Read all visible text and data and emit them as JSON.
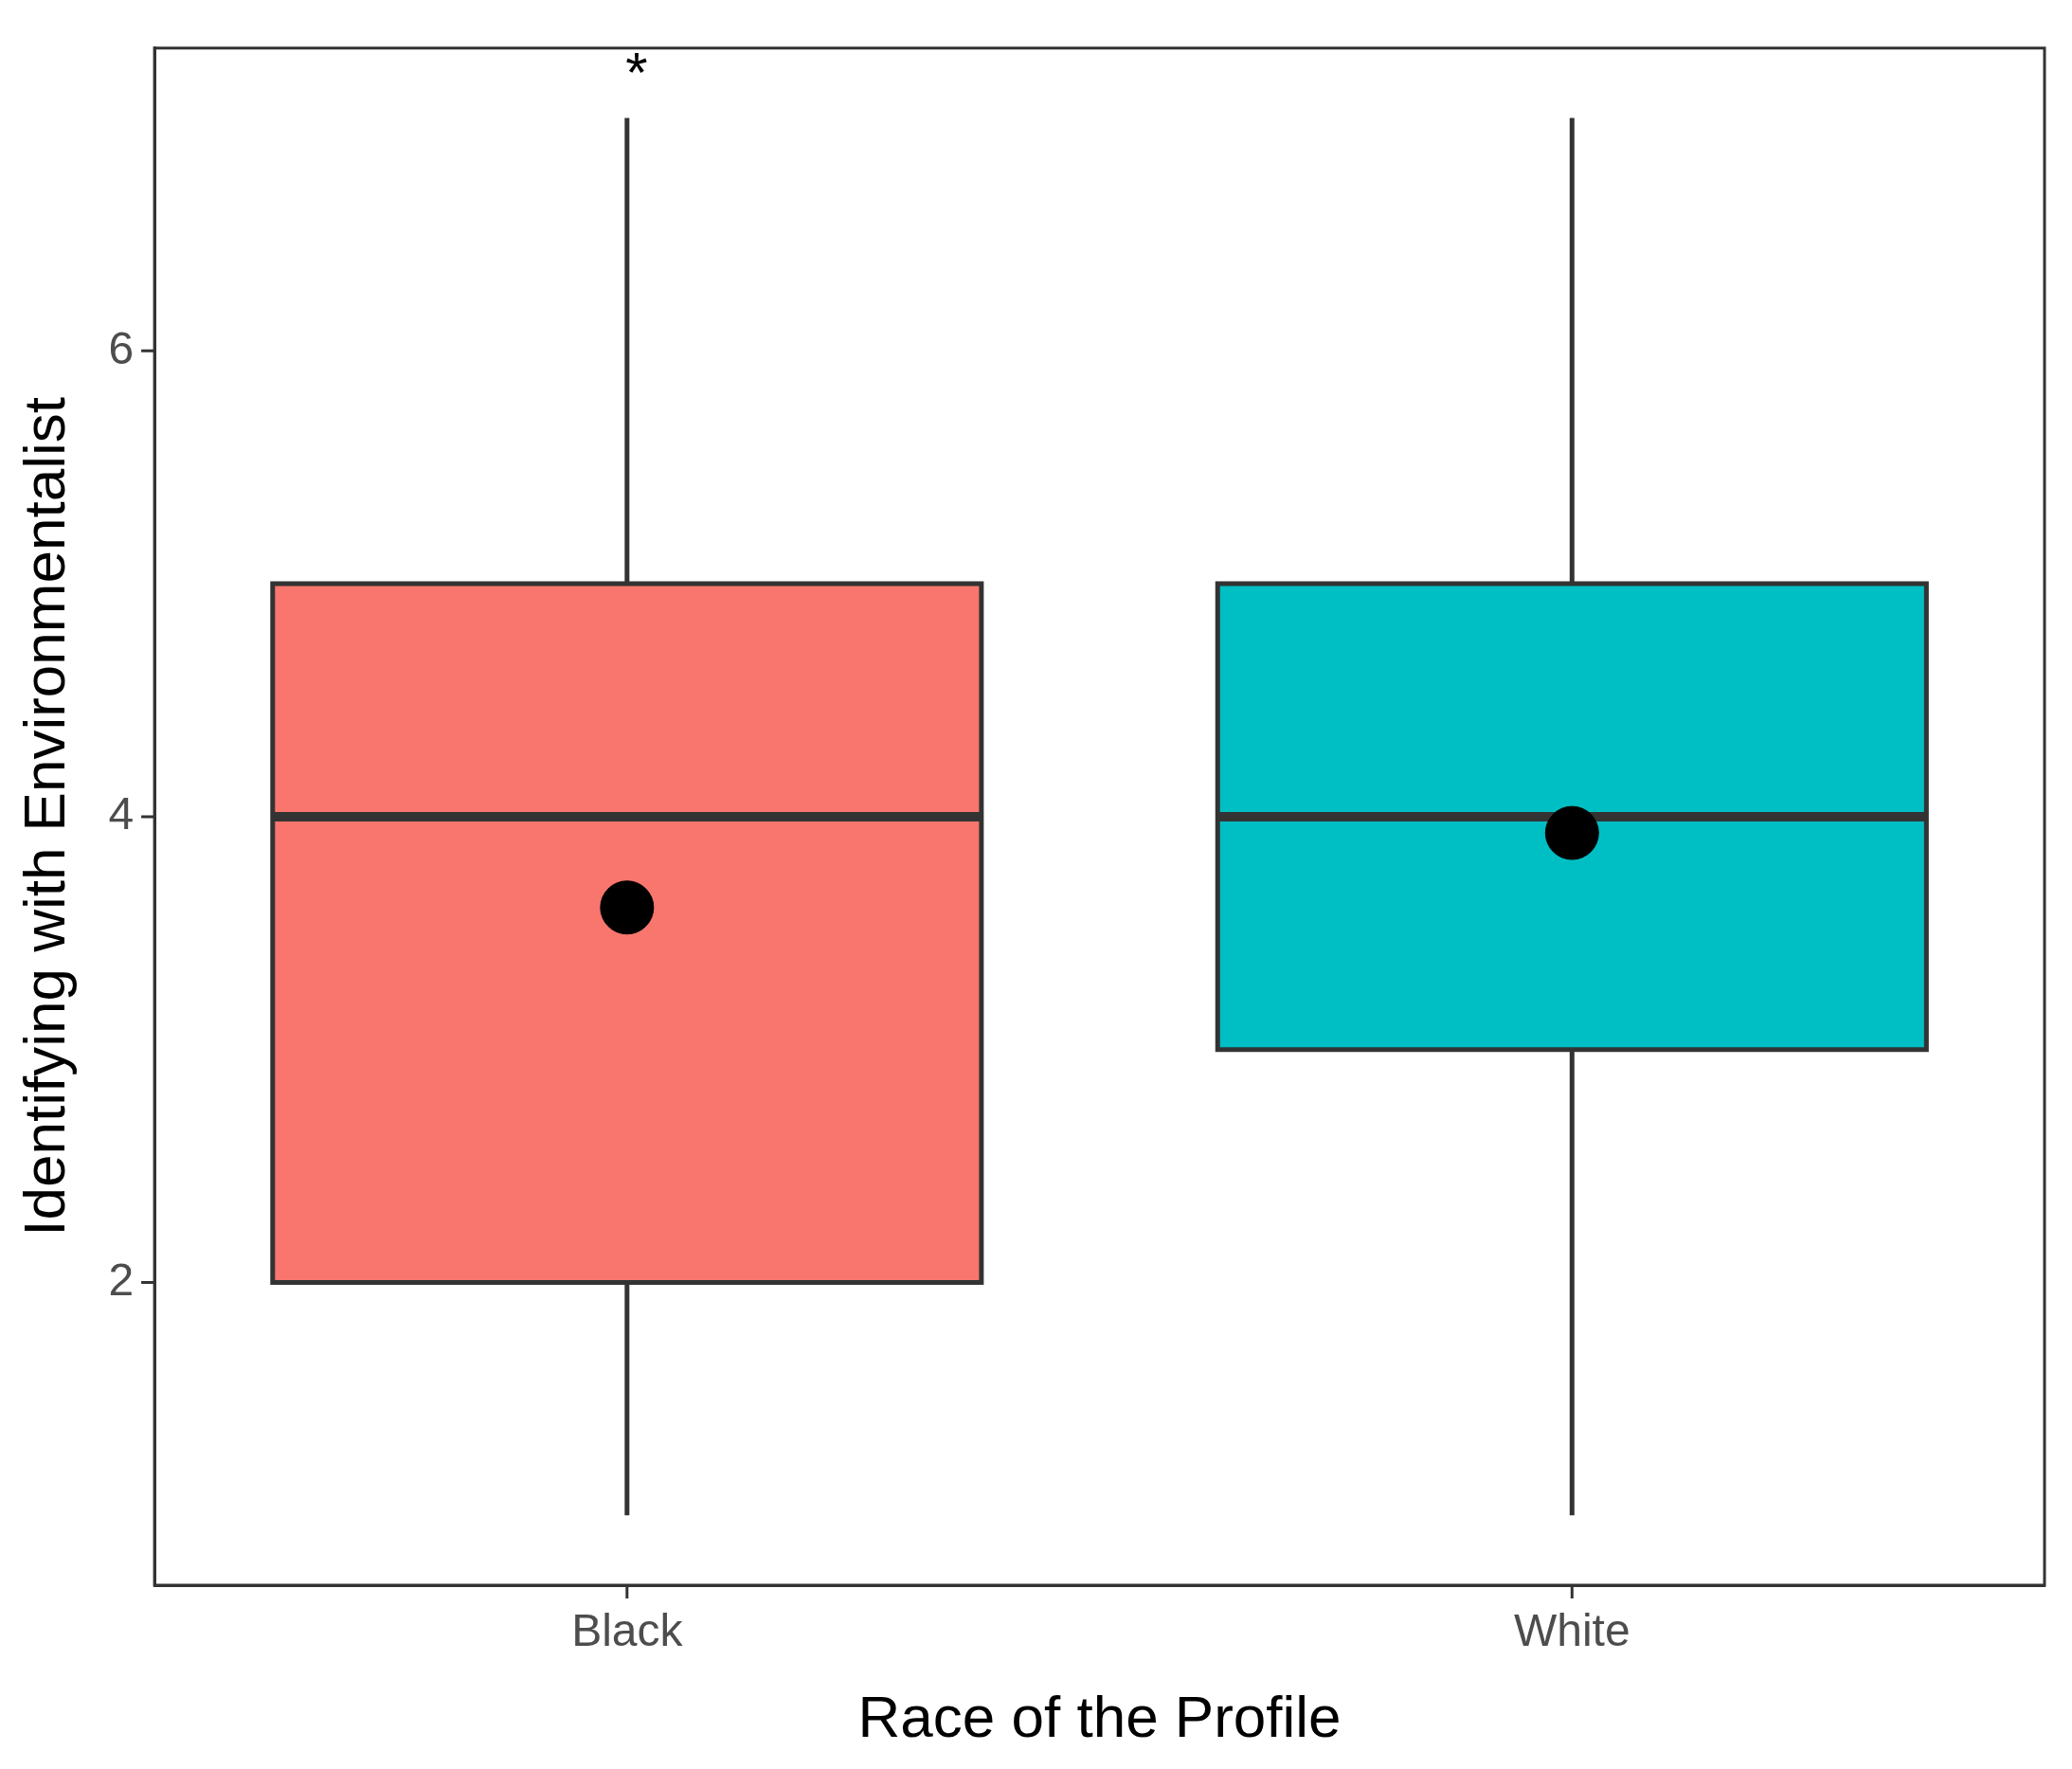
{
  "chart_data": {
    "type": "box",
    "xlabel": "Race of the Profile",
    "ylabel": "Identifying with Environmentalist",
    "categories": [
      "Black",
      "White"
    ],
    "colors": [
      "#f8766d",
      "#00bfc4"
    ],
    "boxes": [
      {
        "low": 1,
        "q1": 2,
        "median": 4,
        "q3": 5,
        "high": 7
      },
      {
        "low": 1,
        "q1": 3,
        "median": 4,
        "q3": 5,
        "high": 7
      }
    ],
    "series": [
      {
        "type": "scatter",
        "color": "#000000",
        "x": [
          "Black",
          "White"
        ],
        "values": [
          3.61,
          3.93
        ]
      }
    ],
    "marker": "circle",
    "ylim": [
      0.7,
      7.3
    ],
    "yticks": [
      2,
      4,
      6
    ],
    "grid": false,
    "legend": false,
    "annotations": [
      "*"
    ]
  }
}
